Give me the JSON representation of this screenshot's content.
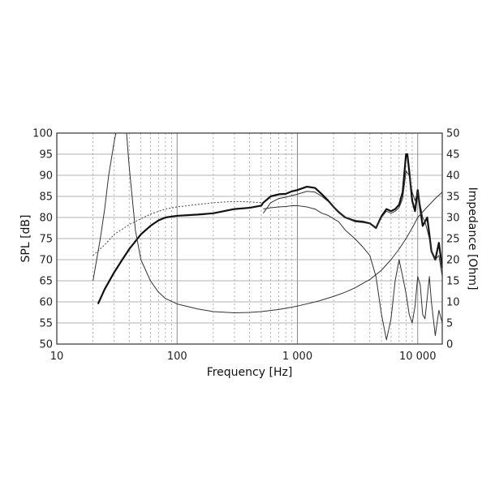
{
  "chart_data": {
    "type": "line",
    "xlabel": "Frequency [Hz]",
    "ylabel_left": "SPL [dB]",
    "ylabel_right": "Impedance [Ohm]",
    "x_scale": "log",
    "xlim": [
      10,
      16000
    ],
    "ylim_left": [
      50,
      100
    ],
    "ylim_right": [
      0,
      50
    ],
    "grid": true,
    "x_ticks": [
      {
        "value": 10,
        "label": "10"
      },
      {
        "value": 100,
        "label": "100"
      },
      {
        "value": 1000,
        "label": "1 000"
      },
      {
        "value": 10000,
        "label": "10 000"
      }
    ],
    "y_ticks_left": [
      "50",
      "55",
      "60",
      "65",
      "70",
      "75",
      "80",
      "85",
      "90",
      "95",
      "100"
    ],
    "y_ticks_right": [
      "0",
      "5",
      "10",
      "15",
      "20",
      "25",
      "30",
      "35",
      "40",
      "45",
      "50"
    ],
    "series": [
      {
        "axis": "left",
        "style": "thick",
        "x": [
          22,
          25,
          30,
          35,
          40,
          50,
          60,
          70,
          80,
          100,
          150,
          200,
          300,
          400,
          500,
          520,
          600,
          700,
          800,
          900,
          1000,
          1200,
          1400,
          1600,
          1800,
          2000,
          2200,
          2500,
          3000,
          3500,
          4000,
          4500,
          5000,
          5500,
          6000,
          6500,
          7000,
          7500,
          8000,
          8200,
          8500,
          9000,
          9500,
          10000,
          10500,
          11000,
          11500,
          12000,
          12500,
          13000,
          14000,
          15000,
          16000
        ],
        "y": [
          59.5,
          63,
          67,
          70,
          72.5,
          76,
          78,
          79.3,
          80,
          80.4,
          80.7,
          81,
          82,
          82.3,
          82.8,
          83.5,
          85,
          85.5,
          85.6,
          86.2,
          86.5,
          87.3,
          87,
          85.5,
          84,
          82.5,
          81.3,
          80,
          79.2,
          79,
          78.6,
          77.5,
          80.3,
          82,
          81.5,
          82,
          83,
          86,
          95,
          95,
          91,
          84,
          81.5,
          86.5,
          82,
          78,
          79,
          80,
          76,
          72,
          70,
          74,
          68
        ]
      },
      {
        "axis": "left",
        "style": "thin",
        "x": [
          520,
          600,
          700,
          800,
          900,
          1000,
          1200,
          1400,
          1600,
          1800,
          2000,
          2200,
          2500,
          3000,
          3500,
          4000,
          4500,
          5000,
          5500,
          6000,
          6500,
          7000,
          7500,
          8000,
          8500,
          9000,
          9500,
          10000,
          10500,
          11000,
          11500,
          12000,
          12500,
          13000,
          14000,
          15000,
          16000
        ],
        "y": [
          81,
          83.5,
          84.5,
          84.8,
          85.2,
          85.5,
          86.2,
          86,
          85,
          83.8,
          82.5,
          81.5,
          80,
          79,
          78.8,
          78.5,
          77.5,
          80,
          81.5,
          81,
          81.5,
          82.3,
          84.5,
          91,
          90,
          86,
          84,
          86,
          83,
          80,
          79,
          77,
          75,
          72,
          70,
          71,
          66
        ]
      },
      {
        "axis": "left",
        "style": "thin",
        "x": [
          520,
          600,
          700,
          800,
          900,
          1000,
          1200,
          1400,
          1600,
          1800,
          2000,
          2200,
          2500,
          3000,
          3500,
          4000,
          4500,
          5000,
          5500,
          6000,
          6500,
          7000,
          7500,
          8000,
          8500,
          9000,
          9500,
          10000,
          10500,
          11000,
          11500,
          12000,
          12500,
          13000,
          14000,
          15000,
          16000
        ],
        "y": [
          82,
          82.3,
          82.5,
          82.6,
          82.8,
          82.8,
          82.5,
          82,
          81,
          80.5,
          79.7,
          79,
          77,
          75,
          73,
          71,
          66,
          57,
          51,
          56,
          65,
          70,
          66,
          62,
          57,
          55,
          59,
          66,
          64,
          57,
          56,
          61,
          66,
          60,
          52,
          58,
          55
        ]
      },
      {
        "axis": "left",
        "style": "dashed",
        "x": [
          20,
          25,
          30,
          40,
          50,
          60,
          80,
          100,
          150,
          200,
          300,
          400,
          500
        ],
        "y": [
          71,
          73.5,
          76,
          78.3,
          79.7,
          80.8,
          82,
          82.5,
          83.1,
          83.5,
          83.8,
          83.7,
          83.5
        ]
      },
      {
        "axis": "right",
        "style": "thin",
        "x": [
          20,
          23,
          25,
          27,
          30,
          31,
          33,
          35,
          38,
          40,
          45,
          50,
          60,
          70,
          80,
          100,
          150,
          200,
          300,
          400,
          500,
          700,
          1000,
          1500,
          2000,
          2500,
          3000,
          4000,
          5000,
          6000,
          7000,
          8000,
          9000,
          10000,
          12000,
          14000,
          16000
        ],
        "y": [
          15,
          25,
          32,
          40,
          48,
          50,
          50,
          50,
          50,
          42,
          27,
          20,
          15,
          12.3,
          10.8,
          9.5,
          8.3,
          7.7,
          7.4,
          7.5,
          7.7,
          8.2,
          9,
          10.2,
          11.3,
          12.3,
          13.3,
          15.3,
          17.5,
          20,
          22.5,
          25,
          27.5,
          30,
          32.5,
          34.5,
          36
        ]
      }
    ]
  }
}
